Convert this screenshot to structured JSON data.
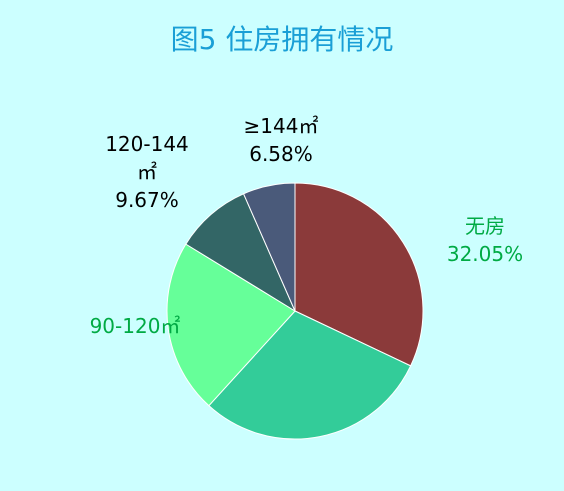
{
  "chart_data": {
    "type": "pie",
    "title": "图5 住房拥有情况",
    "categories": [
      "无房",
      null,
      "90-120㎡",
      "120-144 ㎡",
      "≥144㎡"
    ],
    "values": [
      32.05,
      29.7,
      22,
      9.67,
      6.58
    ],
    "value_labels": [
      "32.05%",
      null,
      null,
      "9.67%",
      "6.58%"
    ],
    "colors": [
      "#8b3a3a",
      "#33cc99",
      "#66ff99",
      "#336666",
      "#4a5a7a"
    ]
  }
}
